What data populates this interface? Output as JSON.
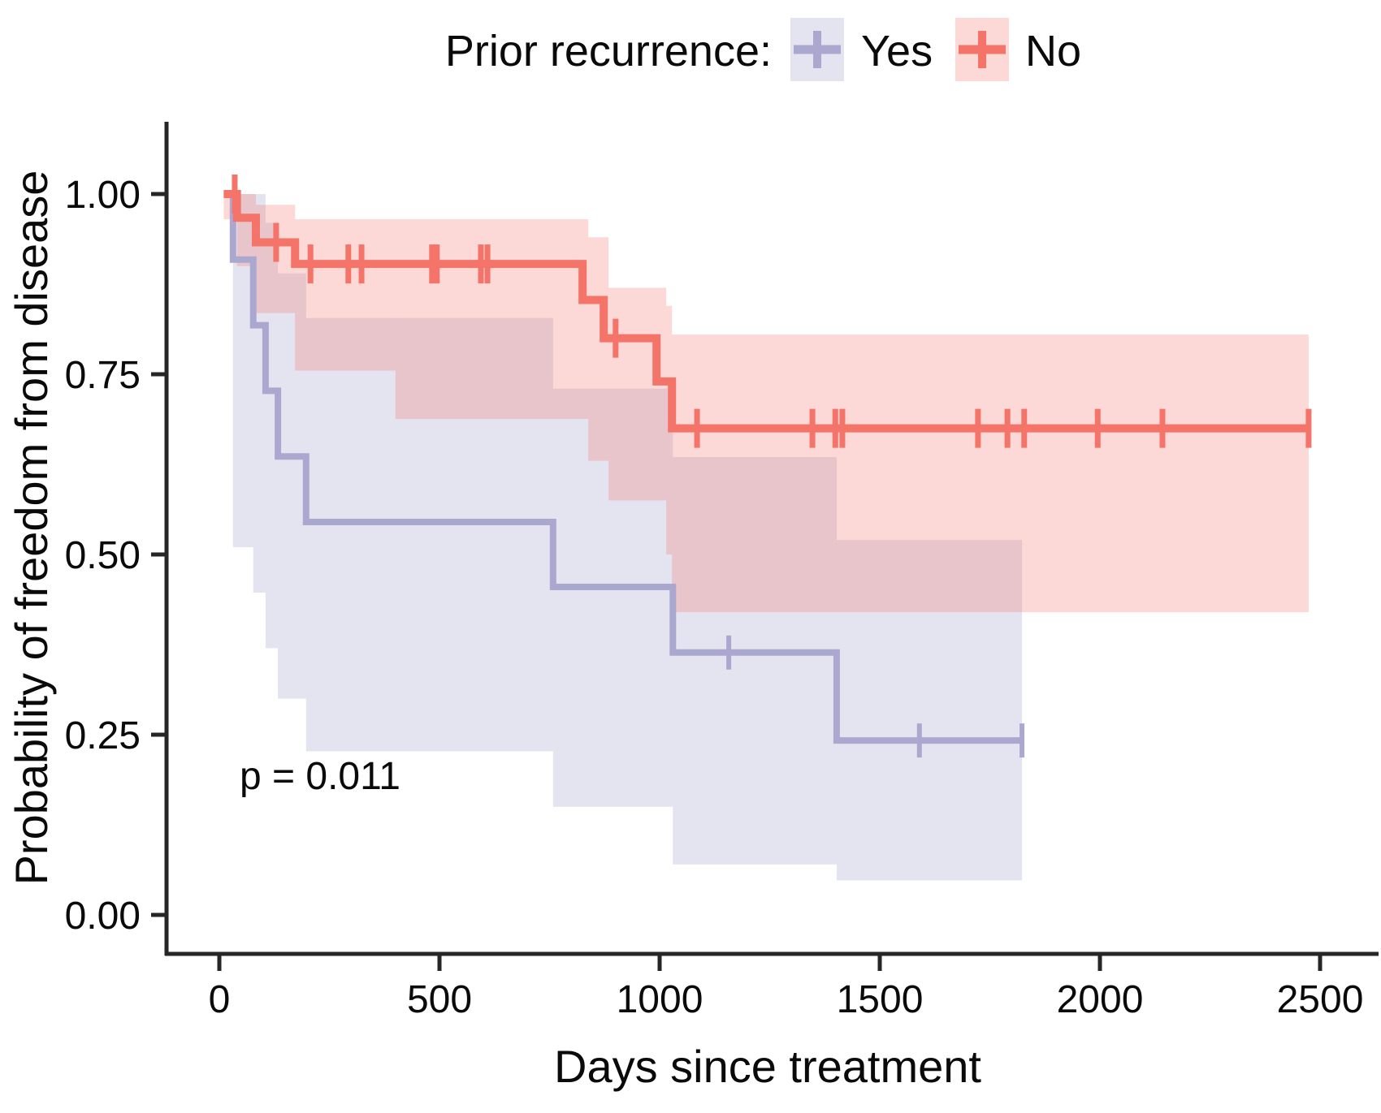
{
  "figure": {
    "legend": {
      "title": "Prior recurrence:",
      "items": [
        {
          "label": "Yes",
          "line_color": "#aba8d0",
          "key_fill": "rgba(171,168,208,0.32)"
        },
        {
          "label": "No",
          "line_color": "#f4746a",
          "key_fill": "rgba(244,116,106,0.28)"
        }
      ]
    },
    "x_axis": {
      "title": "Days since treatment",
      "tick_labels": [
        "0",
        "500",
        "1000",
        "1500",
        "2000",
        "2500"
      ],
      "tick_values": [
        0,
        500,
        1000,
        1500,
        2000,
        2500
      ]
    },
    "y_axis": {
      "title": "Probability of freedom from disease",
      "tick_labels": [
        "1.00",
        "0.75",
        "0.50",
        "0.25",
        "0.00"
      ],
      "tick_values": [
        1.0,
        0.75,
        0.5,
        0.25,
        0.0
      ]
    },
    "annotation": {
      "p_value": "p = 0.011"
    },
    "colors": {
      "axis": "#262626",
      "text": "#0a0a0a",
      "yes_line": "#aba8d0",
      "yes_band": "rgba(171,168,208,0.32)",
      "no_line": "#f4746a",
      "no_band": "rgba(244,116,106,0.28)"
    }
  },
  "chart_data": {
    "type": "line",
    "subtype": "kaplan-meier-step",
    "title": "",
    "xlabel": "Days since treatment",
    "ylabel": "Probability of freedom from disease",
    "xlim": [
      -120,
      2630
    ],
    "ylim": [
      -0.05,
      1.05
    ],
    "grid": false,
    "legend_position": "top",
    "p_value": "p = 0.011",
    "series": [
      {
        "name": "Yes",
        "color": "#aba8d0",
        "band_color": "rgba(171,168,208,0.32)",
        "line_width": 8,
        "steps": [
          [
            10,
            1.0
          ],
          [
            31,
            0.909
          ],
          [
            77,
            0.818
          ],
          [
            105,
            0.727
          ],
          [
            133,
            0.636
          ],
          [
            197,
            0.545
          ],
          [
            758,
            0.455
          ],
          [
            1030,
            0.364
          ],
          [
            1402,
            0.242
          ],
          [
            1823,
            0.242
          ]
        ],
        "censors": [
          [
            1157,
            0.364
          ],
          [
            1590,
            0.242
          ],
          [
            1823,
            0.242
          ]
        ],
        "band": [
          [
            31,
            77,
            0.51,
            1.0
          ],
          [
            77,
            105,
            0.447,
            1.0
          ],
          [
            105,
            133,
            0.37,
            0.96
          ],
          [
            133,
            197,
            0.3,
            0.89
          ],
          [
            197,
            758,
            0.227,
            0.828
          ],
          [
            758,
            1030,
            0.15,
            0.73
          ],
          [
            1030,
            1402,
            0.07,
            0.635
          ],
          [
            1402,
            1823,
            0.048,
            0.52
          ]
        ]
      },
      {
        "name": "No",
        "color": "#f4746a",
        "band_color": "rgba(244,116,106,0.28)",
        "line_width": 10,
        "steps": [
          [
            10,
            1.0
          ],
          [
            40,
            0.967
          ],
          [
            83,
            0.933
          ],
          [
            172,
            0.903
          ],
          [
            825,
            0.853
          ],
          [
            873,
            0.8
          ],
          [
            993,
            0.74
          ],
          [
            1028,
            0.675
          ],
          [
            2474,
            0.675
          ]
        ],
        "censors": [
          [
            35,
            1.0
          ],
          [
            129,
            0.933
          ],
          [
            207,
            0.903
          ],
          [
            293,
            0.903
          ],
          [
            323,
            0.903
          ],
          [
            483,
            0.903
          ],
          [
            494,
            0.903
          ],
          [
            594,
            0.903
          ],
          [
            609,
            0.903
          ],
          [
            900,
            0.8
          ],
          [
            1085,
            0.675
          ],
          [
            1347,
            0.675
          ],
          [
            1399,
            0.675
          ],
          [
            1415,
            0.675
          ],
          [
            1723,
            0.675
          ],
          [
            1790,
            0.675
          ],
          [
            1828,
            0.675
          ],
          [
            1995,
            0.675
          ],
          [
            2142,
            0.675
          ],
          [
            2474,
            0.675
          ]
        ],
        "band": [
          [
            10,
            40,
            0.965,
            1.0
          ],
          [
            40,
            83,
            0.9,
            1.0
          ],
          [
            83,
            172,
            0.835,
            0.985
          ],
          [
            172,
            400,
            0.755,
            0.965
          ],
          [
            400,
            838,
            0.688,
            0.965
          ],
          [
            838,
            884,
            0.63,
            0.94
          ],
          [
            884,
            1015,
            0.575,
            0.87
          ],
          [
            1015,
            1028,
            0.5,
            0.845
          ],
          [
            1028,
            2474,
            0.42,
            0.805
          ]
        ]
      }
    ]
  }
}
